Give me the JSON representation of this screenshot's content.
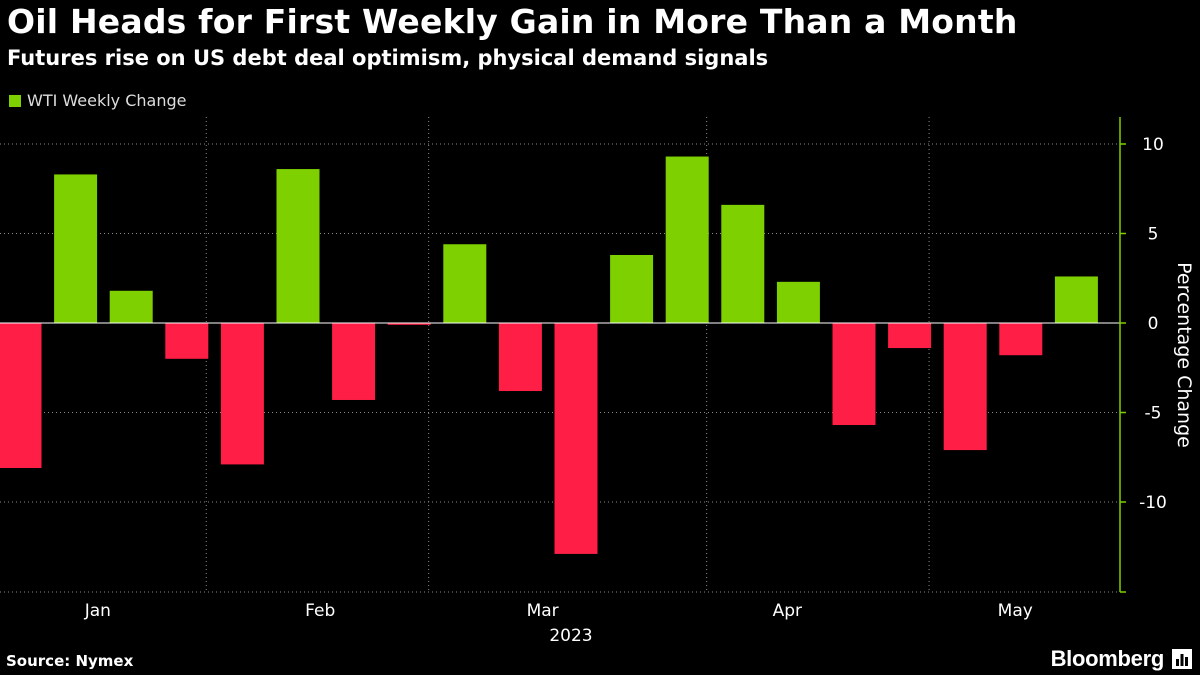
{
  "chart_data": {
    "type": "bar",
    "title": "Oil Heads for First Weekly Gain in More Than a Month",
    "subtitle": "Futures rise on US debt deal optimism, physical demand signals",
    "legend": "WTI Weekly Change",
    "ylabel": "Percentage Change",
    "year_label": "2023",
    "source": "Source: Nymex",
    "brand": "Bloomberg",
    "ylim": [
      -15,
      11
    ],
    "yticks": [
      {
        "value": 10,
        "label": "10"
      },
      {
        "value": 5,
        "label": "5"
      },
      {
        "value": 0,
        "label": "0"
      },
      {
        "value": -5,
        "label": "-5"
      },
      {
        "value": -10,
        "label": "-10"
      }
    ],
    "month_labels": [
      {
        "label": "Jan",
        "week": 1.4
      },
      {
        "label": "Feb",
        "week": 5.4
      },
      {
        "label": "Mar",
        "week": 9.4
      },
      {
        "label": "Apr",
        "week": 13.8
      },
      {
        "label": "May",
        "week": 17.9
      }
    ],
    "gridline_weeks": [
      3.35,
      7.35,
      12.35,
      16.35
    ],
    "weeks": [
      0,
      1,
      2,
      3,
      4,
      5,
      6,
      7,
      8,
      9,
      10,
      11,
      12,
      13,
      14,
      15,
      16,
      17,
      18,
      19
    ],
    "values": [
      -8.1,
      8.3,
      1.8,
      -2.0,
      -7.9,
      8.6,
      -4.3,
      -0.1,
      4.4,
      -3.8,
      -12.9,
      3.8,
      9.3,
      6.6,
      2.3,
      -5.7,
      -1.4,
      -7.1,
      -1.8,
      2.6
    ],
    "colors": {
      "positive": "#7ED000",
      "negative": "#FF1E46",
      "grid": "#8a8a8a",
      "axis": "#7ED000"
    }
  }
}
